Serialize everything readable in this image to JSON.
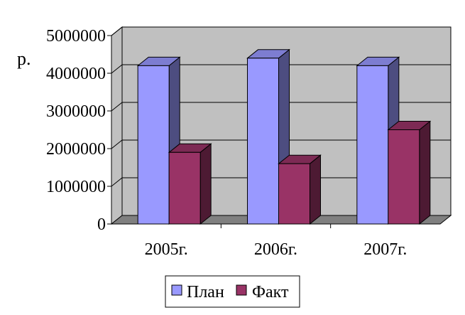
{
  "chart_data": {
    "type": "bar",
    "three_d": true,
    "categories": [
      "2005г.",
      "2006г.",
      "2007г."
    ],
    "series": [
      {
        "name": "План",
        "values": [
          4200000,
          4400000,
          4200000
        ],
        "color": "#9999ff"
      },
      {
        "name": "Факт",
        "values": [
          1900000,
          1600000,
          2500000
        ],
        "color": "#993366"
      }
    ],
    "ylabel": "р.",
    "ylim": [
      0,
      5000000
    ],
    "yticks": [
      "0",
      "1000000",
      "2000000",
      "3000000",
      "4000000",
      "5000000"
    ],
    "grid": true,
    "wall_color": "#c0c0c0",
    "floor_color": "#808080",
    "legend_position": "bottom"
  }
}
